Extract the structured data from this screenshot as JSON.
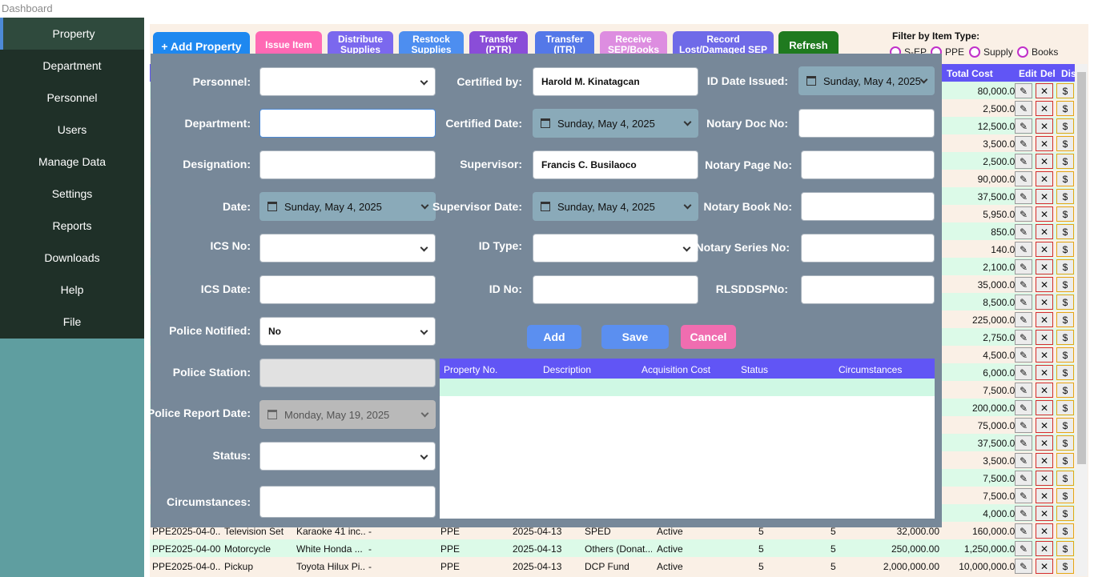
{
  "window": {
    "title": "Dashboard"
  },
  "sidebar": {
    "items": [
      {
        "label": "Property",
        "active": true
      },
      {
        "label": "Department"
      },
      {
        "label": "Personnel"
      },
      {
        "label": "Users"
      },
      {
        "label": "Manage Data"
      },
      {
        "label": "Settings"
      },
      {
        "label": "Reports"
      },
      {
        "label": "Downloads"
      },
      {
        "label": "Help"
      },
      {
        "label": "File"
      }
    ]
  },
  "toolbar": {
    "add_property": "+ Add Property",
    "issue_item": "Issue Item",
    "distribute_supplies": "Distribute Supplies",
    "restock_supplies": "Restock Supplies",
    "transfer_ptr": "Transfer (PTR)",
    "transfer_itr": "Transfer (ITR)",
    "receive_sep": "Receive SEP/Books",
    "record_lost": "Record Lost/Damaged SEP",
    "refresh": "Refresh"
  },
  "filter": {
    "title": "Filter by Item Type:",
    "options": [
      "S-EP",
      "PPE",
      "Supply",
      "Books"
    ]
  },
  "table": {
    "headers": {
      "total_cost": "Total Cost",
      "edit": "Edit",
      "del": "Del",
      "dis": "Dis"
    },
    "right_column_rows": [
      {
        "total": "80,000.00"
      },
      {
        "total": "2,500.00"
      },
      {
        "total": "12,500.00"
      },
      {
        "total": "3,500.00"
      },
      {
        "total": "2,500.00"
      },
      {
        "total": "90,000.00"
      },
      {
        "total": "37,500.00"
      },
      {
        "total": "5,950.00"
      },
      {
        "total": "850.00"
      },
      {
        "total": "140.00"
      },
      {
        "total": "2,100.00"
      },
      {
        "total": "35,000.00"
      },
      {
        "total": "8,500.00"
      },
      {
        "total": "225,000.00"
      },
      {
        "total": "2,750.00"
      },
      {
        "total": "4,500.00"
      },
      {
        "total": "6,000.00"
      },
      {
        "total": "7,500.00"
      },
      {
        "total": "200,000.00"
      },
      {
        "total": "75,000.00"
      },
      {
        "total": "37,500.00"
      },
      {
        "total": "3,500.00"
      },
      {
        "total": "7,500.00"
      },
      {
        "total": "7,500.00"
      },
      {
        "total": "4,000.00"
      }
    ],
    "full_rows": [
      {
        "property_no": "PPE2025-04-0...",
        "name": "Television Set",
        "description": "Karaoke 41 inc...",
        "col4": "-",
        "type": "PPE",
        "date": "2025-04-13",
        "fund": "SPED",
        "status": "Active",
        "qty1": "5",
        "qty2": "5",
        "unit_cost": "32,000.00",
        "total": "160,000.00"
      },
      {
        "property_no": "PPE2025-04-00...",
        "name": "Motorcycle",
        "description": "White Honda ...",
        "col4": "-",
        "type": "PPE",
        "date": "2025-04-13",
        "fund": "Others (Donat...",
        "status": "Active",
        "qty1": "5",
        "qty2": "5",
        "unit_cost": "250,000.00",
        "total": "1,250,000.00"
      },
      {
        "property_no": "PPE2025-04-0...",
        "name": "Pickup",
        "description": "Toyota Hilux Pi...",
        "col4": "-",
        "type": "PPE",
        "date": "2025-04-13",
        "fund": "DCP Fund",
        "status": "Active",
        "qty1": "5",
        "qty2": "5",
        "unit_cost": "2,000,000.00",
        "total": "10,000,000.00"
      }
    ],
    "action_icons": {
      "edit": "✎",
      "del": "✕",
      "dis": "$"
    }
  },
  "form": {
    "labels": {
      "personnel": "Personnel:",
      "department": "Department:",
      "designation": "Designation:",
      "date": "Date:",
      "ics_no": "ICS No:",
      "ics_date": "ICS Date:",
      "police_notified": "Police Notified:",
      "police_station": "Police Station:",
      "police_report_date": "Police Report Date:",
      "status": "Status:",
      "circumstances": "Circumstances:",
      "certified_by": "Certified by:",
      "certified_date": "Certified Date:",
      "supervisor": "Supervisor:",
      "supervisor_date": "Supervisor Date:",
      "id_type": "ID Type:",
      "id_no": "ID No:",
      "id_date_issued": "ID Date Issued:",
      "notary_doc_no": "Notary Doc No:",
      "notary_page_no": "Notary Page No:",
      "notary_book_no": "Notary Book No:",
      "notary_series_no": "Notary Series No:",
      "rlsddsp_no": "RLSDDSPNo:"
    },
    "values": {
      "date": "Sunday, May 4, 2025",
      "police_notified": "No",
      "police_report_date": "Monday, May 19, 2025",
      "certified_by": "Harold M. Kinatagcan",
      "certified_date": "Sunday, May 4, 2025",
      "supervisor": "Francis C. Busilaoco",
      "supervisor_date": "Sunday, May 4, 2025",
      "id_date_issued": "Sunday, May 4, 2025"
    },
    "buttons": {
      "add": "Add",
      "save": "Save",
      "cancel": "Cancel"
    },
    "grid_headers": [
      "Property No.",
      "Description",
      "Acquisition Cost",
      "Status",
      "Circumstances"
    ]
  }
}
